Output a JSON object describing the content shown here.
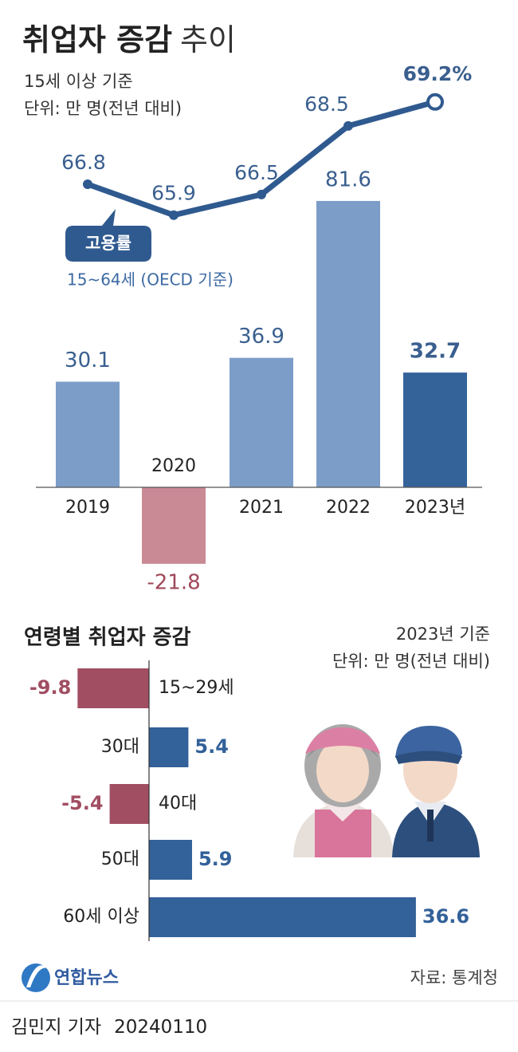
{
  "header": {
    "title": "취업자 증감",
    "title_suffix": "추이",
    "subtitle": "15세 이상 기준",
    "unit": "단위: 만 명(전년 대비)"
  },
  "chart_data": [
    {
      "type": "bar",
      "categories": [
        "2019",
        "2020",
        "2021",
        "2022",
        "2023년"
      ],
      "values": [
        30.1,
        -21.8,
        36.9,
        81.6,
        32.7
      ],
      "colors": [
        "#7d9dc9",
        "#c98a96",
        "#7d9dc9",
        "#7d9dc9",
        "#34639a"
      ],
      "label_color": "#3a5f8f",
      "negative_label_color": "#a0485a"
    },
    {
      "type": "line",
      "label": "고용률",
      "note": "15~64세 (OECD 기준)",
      "values": [
        66.8,
        65.9,
        66.5,
        68.5,
        69.2
      ],
      "value_labels": [
        "66.8",
        "65.9",
        "66.5",
        "68.5",
        "69.2%"
      ],
      "color": "#2f5a8f",
      "label_color": "#3a5f8f"
    },
    {
      "type": "hbar",
      "title": "연령별 취업자 증감",
      "subtitle": "2023년 기준",
      "unit": "단위: 만 명(전년 대비)",
      "categories": [
        "15~29세",
        "30대",
        "40대",
        "50대",
        "60세 이상"
      ],
      "values": [
        -9.8,
        5.4,
        -5.4,
        5.9,
        36.6
      ],
      "color": "#336199",
      "negative_color": "#a14e62"
    }
  ],
  "footer": {
    "logo": "연합뉴스",
    "source": "자료: 통계청",
    "byline": "김민지 기자",
    "date": "20240110"
  }
}
